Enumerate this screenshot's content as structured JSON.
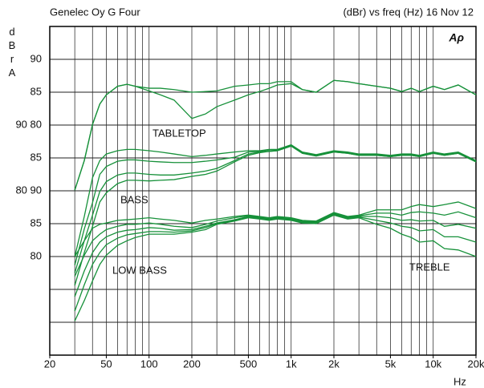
{
  "chart_data": {
    "type": "line",
    "title": "Genelec Oy G Four",
    "subtitle": "(dBr) vs freq (Hz) 16 Nov 12",
    "logo": "Aρ",
    "y_label": "dBrA",
    "x_label": "Hz",
    "annotations": [
      "TABLETOP",
      "BASS",
      "LOW BASS",
      "TREBLE"
    ],
    "log_x": true,
    "xlim": [
      20,
      20000
    ],
    "ylim": [
      45,
      95
    ],
    "xticks": [
      20,
      50,
      100,
      200,
      500,
      {
        "value": 1000,
        "label": "1k"
      },
      {
        "value": 2000,
        "label": "2k"
      },
      {
        "value": 5000,
        "label": "5k"
      },
      {
        "value": 10000,
        "label": "10k"
      },
      {
        "value": 20000,
        "label": "20k"
      }
    ],
    "xgrid": [
      30,
      40,
      50,
      60,
      70,
      80,
      90,
      100,
      200,
      300,
      400,
      500,
      600,
      700,
      800,
      900,
      1000,
      2000,
      3000,
      4000,
      5000,
      6000,
      7000,
      8000,
      9000,
      10000
    ],
    "yticks": [
      90,
      85,
      {
        "value": 80,
        "label": "90 80"
      },
      {
        "value": 75,
        "label": "85"
      },
      {
        "value": 70,
        "label": "80 90"
      },
      {
        "value": 65,
        "label": "85"
      },
      {
        "value": 60,
        "label": "80"
      }
    ],
    "ygrid": [
      55,
      50
    ],
    "x": [
      30,
      35,
      40,
      45,
      50,
      60,
      70,
      80,
      100,
      120,
      150,
      200,
      250,
      300,
      400,
      500,
      600,
      700,
      800,
      1000,
      1200,
      1500,
      2000,
      2500,
      3000,
      4000,
      5000,
      6000,
      7000,
      8000,
      10000,
      12000,
      15000,
      20000
    ],
    "series": [
      {
        "color": "#17913a",
        "values": [
          70.1,
          74.6,
          80.1,
          83.2,
          84.6,
          85.9,
          86.2,
          85.9,
          85.6,
          85.6,
          85.4,
          85.0,
          85.1,
          85.2,
          85.9,
          86.1,
          86.3,
          86.3,
          86.6,
          86.6,
          85.4,
          85.0,
          86.8,
          86.6,
          86.3,
          85.9,
          85.6,
          85.1,
          85.6,
          85.1,
          85.9,
          85.4,
          86.1,
          84.6
        ]
      },
      {
        "color": "#17913a",
        "values": [
          70.1,
          74.6,
          80.1,
          83.2,
          84.6,
          85.9,
          86.2,
          85.9,
          85.2,
          84.6,
          83.8,
          81.0,
          81.7,
          82.8,
          83.8,
          84.6,
          85.1,
          85.6,
          86.1,
          86.3,
          85.4,
          85.0,
          86.8,
          86.6,
          86.3,
          85.9,
          85.6,
          85.1,
          85.6,
          85.1,
          85.9,
          85.4,
          86.1,
          84.6
        ]
      },
      {
        "color": "#17913a",
        "values": [
          60.0,
          66.1,
          72.0,
          74.6,
          75.6,
          76.1,
          76.3,
          76.3,
          76.1,
          75.9,
          75.6,
          75.2,
          75.4,
          75.6,
          75.9,
          76.1,
          76.1,
          76.3,
          76.3,
          77.0,
          75.9,
          75.5,
          76.1,
          75.9,
          75.6,
          75.6,
          75.4,
          75.6,
          75.6,
          75.4,
          75.9,
          75.6,
          75.9,
          74.6
        ]
      },
      {
        "color": "#17913a",
        "values": [
          58.7,
          64.2,
          68.2,
          72.5,
          73.7,
          74.5,
          74.7,
          74.7,
          74.5,
          74.4,
          74.3,
          74.3,
          74.5,
          74.7,
          75.1,
          75.9,
          76.0,
          76.2,
          76.2,
          76.9,
          75.8,
          75.4,
          76.0,
          75.8,
          75.5,
          75.5,
          75.3,
          75.5,
          75.5,
          75.3,
          75.8,
          75.5,
          75.8,
          74.5
        ]
      },
      {
        "color": "#17913a",
        "values": [
          57.5,
          62.4,
          66.3,
          69.9,
          71.4,
          72.4,
          72.7,
          72.7,
          72.5,
          72.4,
          72.4,
          72.7,
          73.0,
          73.4,
          74.6,
          75.6,
          75.9,
          76.0,
          76.1,
          76.8,
          75.7,
          75.3,
          75.9,
          75.7,
          75.4,
          75.4,
          75.2,
          75.4,
          75.4,
          75.2,
          75.7,
          75.4,
          75.7,
          74.4
        ]
      },
      {
        "color": "#17913a",
        "values": [
          55.6,
          60.6,
          64.6,
          68.3,
          69.7,
          71.1,
          71.6,
          71.6,
          71.5,
          71.6,
          71.7,
          72.2,
          72.5,
          73.0,
          74.4,
          75.4,
          75.8,
          76.0,
          76.1,
          76.8,
          75.7,
          75.3,
          75.9,
          75.7,
          75.4,
          75.4,
          75.2,
          75.4,
          75.4,
          75.2,
          75.7,
          75.4,
          75.7,
          74.4
        ]
      },
      {
        "color": "#17913a",
        "values": [
          60.0,
          62.4,
          64.3,
          64.9,
          65.1,
          65.5,
          65.6,
          65.7,
          65.9,
          65.7,
          65.5,
          65.1,
          65.5,
          65.7,
          66.1,
          66.3,
          66.1,
          65.9,
          66.1,
          65.9,
          65.5,
          65.4,
          66.7,
          66.1,
          66.3,
          67.1,
          67.1,
          67.1,
          67.6,
          67.9,
          67.6,
          67.9,
          68.3,
          67.3
        ]
      },
      {
        "color": "#17913a",
        "values": [
          57.0,
          60.2,
          62.4,
          63.4,
          64.1,
          64.6,
          64.9,
          64.9,
          65.1,
          64.9,
          64.6,
          64.4,
          64.9,
          65.4,
          65.9,
          66.2,
          66.0,
          65.8,
          66.0,
          65.8,
          65.4,
          65.3,
          66.6,
          66.0,
          66.2,
          66.6,
          66.6,
          66.3,
          66.7,
          66.8,
          66.6,
          66.3,
          66.8,
          65.9
        ]
      },
      {
        "color": "#17913a",
        "values": [
          53.9,
          57.8,
          60.6,
          62.2,
          63.0,
          63.7,
          64.0,
          64.1,
          64.4,
          64.3,
          64.0,
          64.1,
          64.6,
          65.1,
          65.6,
          66.1,
          65.9,
          65.7,
          65.9,
          65.7,
          65.3,
          65.2,
          66.5,
          65.9,
          66.1,
          66.1,
          65.9,
          65.5,
          65.6,
          65.4,
          65.5,
          64.6,
          64.9,
          64.3
        ]
      },
      {
        "color": "#17913a",
        "values": [
          51.7,
          55.7,
          58.8,
          60.6,
          61.8,
          62.8,
          63.3,
          63.5,
          63.8,
          63.8,
          63.7,
          63.9,
          64.4,
          65.0,
          65.5,
          66.0,
          65.8,
          65.6,
          65.8,
          65.6,
          65.2,
          65.1,
          66.4,
          65.8,
          66.0,
          65.5,
          65.1,
          64.6,
          64.4,
          63.9,
          64.1,
          63.0,
          63.0,
          62.2
        ]
      },
      {
        "color": "#17913a",
        "values": [
          50.2,
          53.3,
          56.3,
          58.8,
          60.2,
          61.7,
          62.4,
          62.9,
          63.4,
          63.4,
          63.4,
          63.7,
          64.1,
          64.9,
          65.4,
          65.9,
          65.7,
          65.5,
          65.7,
          65.5,
          65.1,
          65.0,
          66.3,
          65.7,
          65.9,
          64.9,
          64.3,
          63.4,
          62.9,
          62.2,
          62.4,
          61.2,
          61.0,
          60.0
        ]
      }
    ]
  }
}
